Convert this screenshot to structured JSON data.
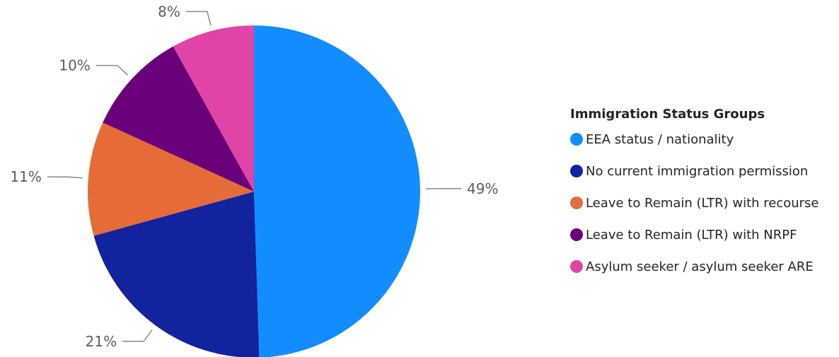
{
  "chart_data": {
    "type": "pie",
    "legend_title": "Immigration Status Groups",
    "legend_position": "right",
    "slices": [
      {
        "name": "EEA status / nationality",
        "value": 49,
        "label": "49%",
        "color": "#118dff"
      },
      {
        "name": "No current immigration permission",
        "value": 21,
        "label": "21%",
        "color": "#12239e"
      },
      {
        "name": "Leave to Remain (LTR) with recourse",
        "value": 11,
        "label": "11%",
        "color": "#e66c37"
      },
      {
        "name": "Leave to Remain (LTR) with NRPF",
        "value": 10,
        "label": "10%",
        "color": "#6b007b"
      },
      {
        "name": "Asylum seeker / asylum seeker ARE",
        "value": 8,
        "label": "8%",
        "color": "#e044a7"
      }
    ]
  }
}
